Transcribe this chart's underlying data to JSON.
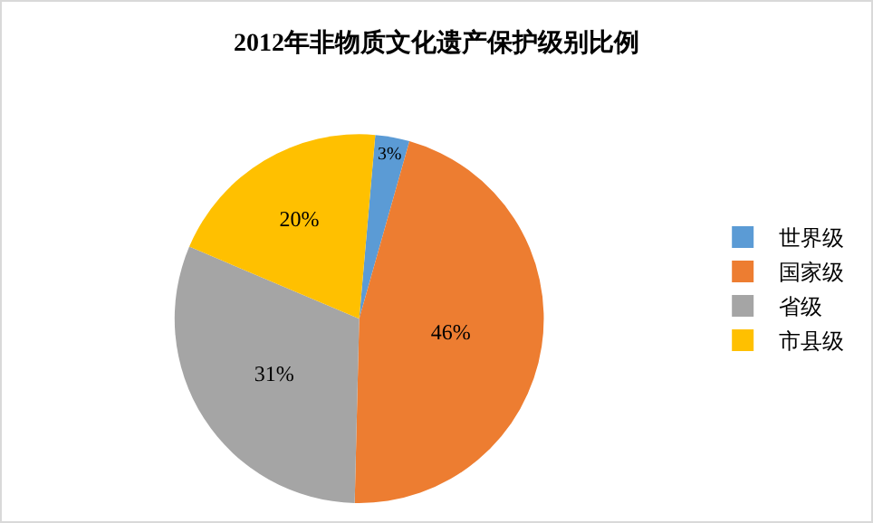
{
  "chart_data": {
    "type": "pie",
    "title": "2012年非物质文化遗产保护级别比例",
    "categories": [
      "世界级",
      "国家级",
      "省级",
      "市县级"
    ],
    "values": [
      3,
      46,
      31,
      20
    ],
    "value_labels": [
      "3%",
      "46%",
      "31%",
      "20%"
    ],
    "colors": [
      "#5b9bd5",
      "#ed7d31",
      "#a5a5a5",
      "#ffc000"
    ],
    "legend": "right"
  }
}
